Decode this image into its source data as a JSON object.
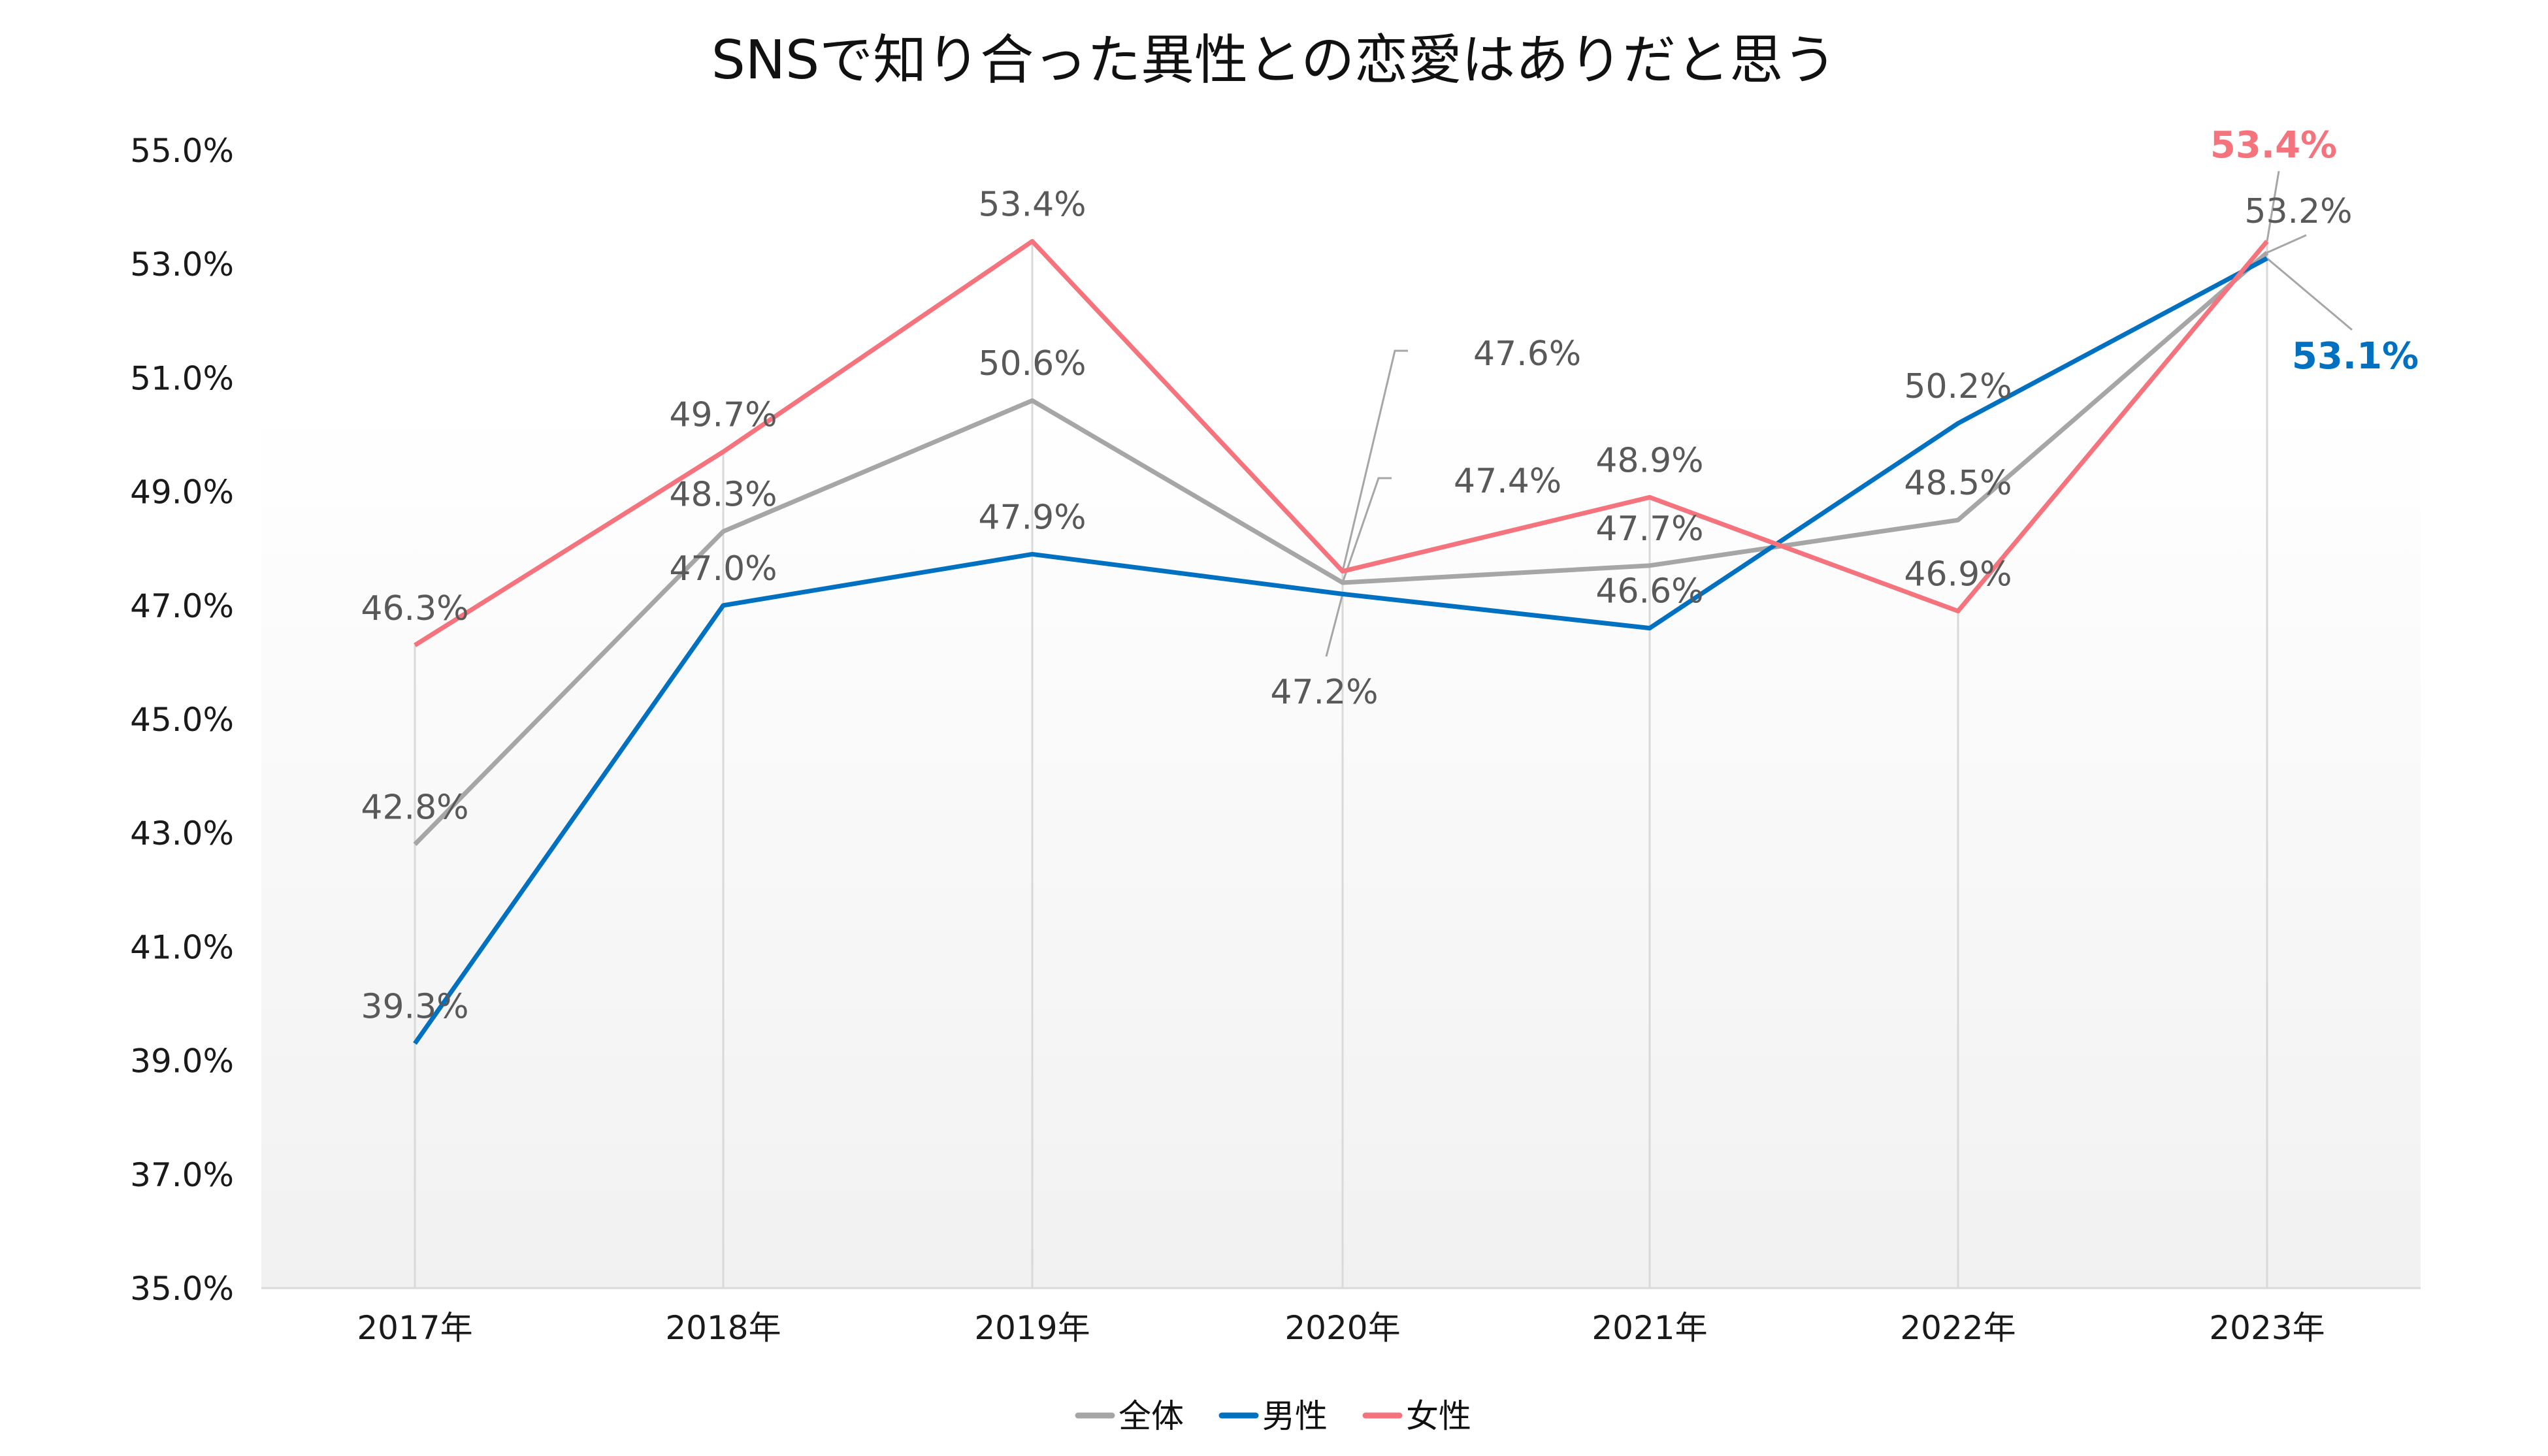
{
  "chart_data": {
    "type": "line",
    "title": "SNSで知り合った異性との恋愛はありだと思う",
    "categories": [
      "2017年",
      "2018年",
      "2019年",
      "2020年",
      "2021年",
      "2022年",
      "2023年"
    ],
    "ylim": [
      35,
      55
    ],
    "yticks": [
      "35.0%",
      "37.0%",
      "39.0%",
      "41.0%",
      "43.0%",
      "45.0%",
      "47.0%",
      "49.0%",
      "51.0%",
      "53.0%",
      "55.0%"
    ],
    "ytick_values": [
      35,
      37,
      39,
      41,
      43,
      45,
      47,
      49,
      51,
      53,
      55
    ],
    "grid": "vertical lines at categories",
    "legend_position": "bottom",
    "series": [
      {
        "name": "全体",
        "color": "#A6A6A6",
        "values": [
          42.8,
          48.3,
          50.6,
          47.4,
          47.7,
          48.5,
          53.2
        ],
        "labels": [
          "42.8%",
          "48.3%",
          "50.6%",
          "47.4%",
          "47.7%",
          "48.5%",
          "53.2%"
        ]
      },
      {
        "name": "男性",
        "color": "#0070C0",
        "values": [
          39.3,
          47.0,
          47.9,
          47.2,
          46.6,
          50.2,
          53.1
        ],
        "labels": [
          "39.3%",
          "47.0%",
          "47.9%",
          "47.2%",
          "46.6%",
          "50.2%",
          "53.1%"
        ]
      },
      {
        "name": "女性",
        "color": "#F4737D",
        "values": [
          46.3,
          49.7,
          53.4,
          47.6,
          48.9,
          46.9,
          53.4
        ],
        "labels": [
          "46.3%",
          "49.7%",
          "53.4%",
          "47.6%",
          "48.9%",
          "46.9%",
          "53.4%"
        ]
      }
    ]
  }
}
